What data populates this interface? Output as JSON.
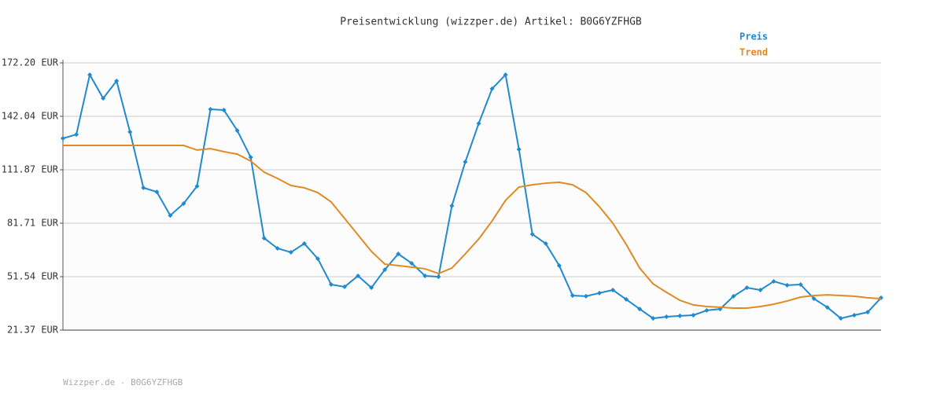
{
  "chart_data": {
    "type": "line",
    "title": "Preisentwicklung (wizzper.de) Artikel: B0G6YZFHGB",
    "footer": "Wizzper.de - B0G6YZFHGB",
    "ylim": [
      21.37,
      172.2
    ],
    "yticks": [
      {
        "value": 21.37,
        "label": "21.37 EUR"
      },
      {
        "value": 51.54,
        "label": "51.54 EUR"
      },
      {
        "value": 81.71,
        "label": "81.71 EUR"
      },
      {
        "value": 111.87,
        "label": "111.87 EUR"
      },
      {
        "value": 142.04,
        "label": "142.04 EUR"
      },
      {
        "value": 172.2,
        "label": "172.20 EUR"
      }
    ],
    "grid": true,
    "legend": "top-right",
    "series": [
      {
        "name": "Preis",
        "color": "#1f8ad0",
        "markers": true,
        "values": [
          129.6,
          131.8,
          165.5,
          152.2,
          162.0,
          133.2,
          101.7,
          99.4,
          86.1,
          92.8,
          102.6,
          146.0,
          145.6,
          134.0,
          118.9,
          73.3,
          67.5,
          65.3,
          70.2,
          61.7,
          47.1,
          45.8,
          52.0,
          45.3,
          55.5,
          64.4,
          59.1,
          52.0,
          51.5,
          91.5,
          116.3,
          138.0,
          157.6,
          165.5,
          123.4,
          75.5,
          70.2,
          57.8,
          40.9,
          40.5,
          42.3,
          44.0,
          38.7,
          33.3,
          28.0,
          28.9,
          29.4,
          29.8,
          32.5,
          33.3,
          40.5,
          45.3,
          44.0,
          48.9,
          46.7,
          47.1,
          39.1,
          34.2,
          28.0,
          29.8,
          31.5,
          39.6
        ]
      },
      {
        "name": "Trend",
        "color": "#e08a24",
        "markers": false,
        "values": [
          125.6,
          125.6,
          125.6,
          125.6,
          125.6,
          125.6,
          125.6,
          125.6,
          125.6,
          125.6,
          123.0,
          123.8,
          122.1,
          120.7,
          116.8,
          110.5,
          107.0,
          103.0,
          101.7,
          99.0,
          93.7,
          84.4,
          75.1,
          65.8,
          58.6,
          57.8,
          56.9,
          56.0,
          53.3,
          56.4,
          64.4,
          72.8,
          83.0,
          94.6,
          102.1,
          103.4,
          104.3,
          104.8,
          103.4,
          99.0,
          91.0,
          81.7,
          69.7,
          56.4,
          47.5,
          42.7,
          38.2,
          35.6,
          34.7,
          34.3,
          33.8,
          33.8,
          34.7,
          36.0,
          37.8,
          40.0,
          40.9,
          41.3,
          40.9,
          40.5,
          39.6,
          39.1
        ]
      }
    ]
  }
}
